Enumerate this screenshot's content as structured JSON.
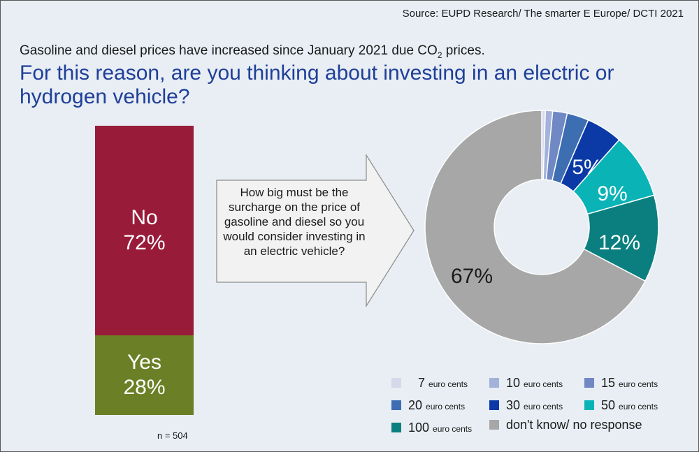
{
  "source": "Source: EUPD Research/ The smarter E Europe/ DCTI 2021",
  "subtitle": {
    "before": "Gasoline and diesel prices have increased since January 2021 due CO",
    "sub": "2",
    "after": " prices."
  },
  "title": "For this reason, are you thinking about investing in an electric or hydrogen vehicle?",
  "stacked_bar": {
    "no_label": "No",
    "no_value": "72%",
    "yes_label": "Yes",
    "yes_value": "28%",
    "n": "n = 504"
  },
  "arrow_question": "How big must be the surcharge on the price of gasoline and diesel so you would consider investing in an electric vehicle?",
  "chart_data": [
    {
      "type": "bar",
      "stacked": true,
      "categories": [
        "No",
        "Yes"
      ],
      "values": [
        72,
        28
      ],
      "colors": [
        "#981b3a",
        "#6b7f26"
      ],
      "unit": "%"
    },
    {
      "type": "pie",
      "donut": true,
      "slices": [
        {
          "label": "7",
          "unit": "euro cents",
          "value": 0.5,
          "color": "#d4d9ec",
          "shown_label": ""
        },
        {
          "label": "10",
          "unit": "euro cents",
          "value": 1,
          "color": "#a2b2d9",
          "shown_label": ""
        },
        {
          "label": "15",
          "unit": "euro cents",
          "value": 2,
          "color": "#7088c4",
          "shown_label": ""
        },
        {
          "label": "20",
          "unit": "euro cents",
          "value": 3,
          "color": "#3d6eb2",
          "shown_label": ""
        },
        {
          "label": "30",
          "unit": "euro cents",
          "value": 5,
          "color": "#0b3aa6",
          "shown_label": "5%"
        },
        {
          "label": "50",
          "unit": "euro cents",
          "value": 9,
          "color": "#0ab3b6",
          "shown_label": "9%"
        },
        {
          "label": "100",
          "unit": "euro cents",
          "value": 12,
          "color": "#0b7f7f",
          "shown_label": "12%"
        },
        {
          "label": "don't know/ no response",
          "unit": "",
          "value": 67,
          "color": "#a7a7a7",
          "shown_label": "67%"
        }
      ]
    }
  ]
}
